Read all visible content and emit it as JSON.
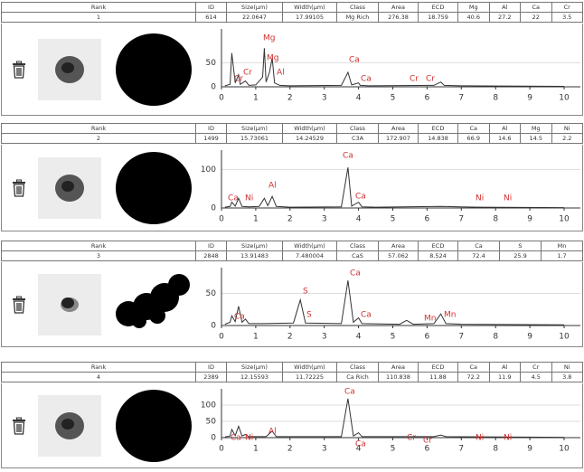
{
  "panels": [
    {
      "table": {
        "headers": [
          "Rank",
          "ID",
          "Size(µm)",
          "Width(µm)",
          "Class",
          "Area",
          "ECD",
          "Mg",
          "Al",
          "Ca",
          "Cr"
        ],
        "row": [
          1,
          614,
          22.0647,
          17.99105,
          "Mg Rich",
          276.38,
          18.759,
          40.6,
          27.2,
          22,
          3.5
        ]
      },
      "spectrum": {
        "type": "line",
        "xlim": [
          0,
          10
        ],
        "xticks": [
          0,
          1,
          2,
          3,
          4,
          5,
          6,
          7,
          8,
          9,
          10
        ],
        "ylim": [
          0,
          120
        ],
        "yticks": [
          0,
          50
        ],
        "x": [
          0.1,
          0.25,
          0.3,
          0.4,
          0.5,
          0.55,
          0.7,
          0.8,
          1.0,
          1.2,
          1.25,
          1.3,
          1.4,
          1.48,
          1.55,
          1.7,
          2.0,
          3.5,
          3.69,
          3.8,
          4.0,
          4.05,
          4.3,
          6.2,
          6.4,
          6.5,
          7,
          10
        ],
        "y": [
          2,
          5,
          70,
          8,
          25,
          5,
          12,
          3,
          4,
          20,
          80,
          10,
          30,
          60,
          8,
          3,
          2,
          3,
          30,
          4,
          8,
          3,
          2,
          3,
          10,
          3,
          2,
          1
        ],
        "labels": [
          "Mg",
          "Mg",
          "Al",
          "Ca",
          "Ca",
          "Cr",
          "Cr",
          "Cr",
          "Cr"
        ]
      }
    },
    {
      "table": {
        "headers": [
          "Rank",
          "ID",
          "Size(µm)",
          "Width(µm)",
          "Class",
          "Area",
          "ECD",
          "Ca",
          "Al",
          "Mg",
          "Ni"
        ],
        "row": [
          2,
          1499,
          15.73061,
          14.24529,
          "C3A",
          172.907,
          14.838,
          66.9,
          14.6,
          14.5,
          2.2
        ]
      },
      "spectrum": {
        "type": "line",
        "xlim": [
          0,
          10
        ],
        "xticks": [
          0,
          1,
          2,
          3,
          4,
          5,
          6,
          7,
          8,
          9,
          10
        ],
        "ylim": [
          0,
          150
        ],
        "yticks": [
          0,
          100
        ],
        "x": [
          0.1,
          0.25,
          0.3,
          0.4,
          0.5,
          0.6,
          0.8,
          1.1,
          1.25,
          1.35,
          1.48,
          1.6,
          2.0,
          3.5,
          3.69,
          3.8,
          4.0,
          4.1,
          4.5,
          6.4,
          7.5,
          10
        ],
        "y": [
          2,
          4,
          15,
          5,
          25,
          4,
          3,
          4,
          25,
          6,
          30,
          4,
          2,
          3,
          105,
          5,
          15,
          3,
          2,
          4,
          2,
          1
        ],
        "labels": [
          "Ca",
          "Ca",
          "Al",
          "Ca",
          "Ni",
          "Ni",
          "Ni"
        ]
      }
    },
    {
      "table": {
        "headers": [
          "Rank",
          "ID",
          "Size(µm)",
          "Width(µm)",
          "Class",
          "Area",
          "ECD",
          "Ca",
          "S",
          "Mn"
        ],
        "row": [
          3,
          2848,
          13.91483,
          7.480004,
          "CaS",
          57.062,
          8.524,
          72.4,
          25.9,
          1.7
        ]
      },
      "spectrum": {
        "type": "line",
        "xlim": [
          0,
          10
        ],
        "xticks": [
          0,
          1,
          2,
          3,
          4,
          5,
          6,
          7,
          8,
          9,
          10
        ],
        "ylim": [
          0,
          90
        ],
        "yticks": [
          0,
          50
        ],
        "x": [
          0.1,
          0.25,
          0.3,
          0.4,
          0.5,
          0.6,
          0.7,
          0.8,
          1.2,
          2.1,
          2.3,
          2.45,
          3.5,
          3.69,
          3.85,
          4.0,
          4.1,
          5.2,
          5.4,
          5.6,
          6.2,
          6.4,
          6.55,
          7,
          10
        ],
        "y": [
          2,
          5,
          15,
          6,
          30,
          5,
          10,
          3,
          3,
          4,
          40,
          4,
          3,
          70,
          5,
          12,
          3,
          2,
          8,
          2,
          3,
          18,
          3,
          2,
          1
        ],
        "labels": [
          "Ca",
          "S",
          "S",
          "Ca",
          "Ca",
          "Mn",
          "Mn"
        ]
      }
    },
    {
      "table": {
        "headers": [
          "Rank",
          "ID",
          "Size(µm)",
          "Width(µm)",
          "Class",
          "Area",
          "ECD",
          "Ca",
          "Al",
          "Cr",
          "Ni"
        ],
        "row": [
          4,
          2389,
          12.15593,
          11.72225,
          "Ca Rich",
          110.838,
          11.88,
          72.2,
          11.9,
          4.5,
          3.8
        ]
      },
      "spectrum": {
        "type": "line",
        "xlim": [
          0,
          10
        ],
        "xticks": [
          0,
          1,
          2,
          3,
          4,
          5,
          6,
          7,
          8,
          9,
          10
        ],
        "ylim": [
          0,
          150
        ],
        "yticks": [
          0,
          50,
          100
        ],
        "x": [
          0.1,
          0.25,
          0.3,
          0.4,
          0.5,
          0.6,
          0.7,
          0.8,
          1.3,
          1.48,
          1.6,
          3.5,
          3.69,
          3.85,
          4.0,
          4.1,
          6.2,
          6.4,
          6.55,
          10
        ],
        "y": [
          2,
          5,
          25,
          6,
          35,
          5,
          10,
          3,
          3,
          20,
          3,
          3,
          120,
          5,
          15,
          3,
          3,
          8,
          3,
          1
        ],
        "labels": [
          "Ca",
          "Ca",
          "Al",
          "Ca",
          "Ni",
          "Cr",
          "Cr",
          "Ni",
          "Ni"
        ]
      }
    }
  ]
}
